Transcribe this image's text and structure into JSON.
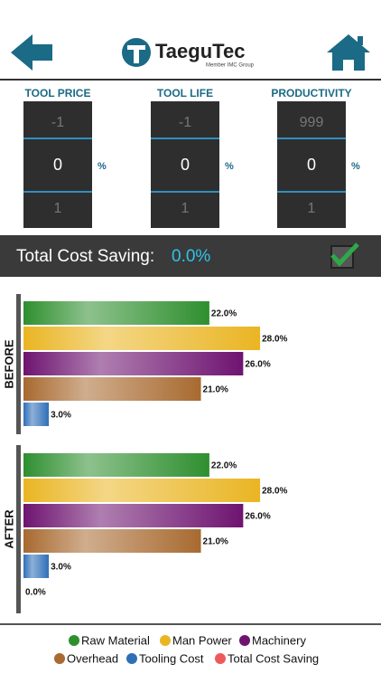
{
  "header": {
    "logo": "TaeguTec",
    "logo_sub": "Member IMC Group"
  },
  "pickers": [
    {
      "label": "TOOL PRICE",
      "above": -1,
      "value": 0,
      "below": 1,
      "unit": "%"
    },
    {
      "label": "TOOL LIFE",
      "above": -1,
      "value": 0,
      "below": 1,
      "unit": "%"
    },
    {
      "label": "PRODUCTIVITY",
      "above": 999,
      "value": 0,
      "below": 1,
      "unit": "%"
    }
  ],
  "summary": {
    "label": "Total Cost Saving:",
    "value": "0.0%"
  },
  "chart_data": {
    "type": "bar",
    "orientation": "horizontal",
    "categories": [
      "BEFORE",
      "AFTER"
    ],
    "series": [
      {
        "name": "Raw Material",
        "color": "#2f8f2f",
        "values": [
          22,
          22
        ],
        "value_labels": [
          "22.0%",
          "22.0%"
        ]
      },
      {
        "name": "Man Power",
        "color": "#eab523",
        "values": [
          28,
          28
        ],
        "value_labels": [
          "28.0%",
          "28.0%"
        ]
      },
      {
        "name": "Machinery",
        "color": "#6e1470",
        "values": [
          26,
          26
        ],
        "value_labels": [
          "26.0%",
          "26.0%"
        ]
      },
      {
        "name": "Overhead",
        "color": "#a86a30",
        "values": [
          21,
          21
        ],
        "value_labels": [
          "21.0%",
          "21.0%"
        ]
      },
      {
        "name": "Tooling Cost",
        "color": "#2f6fb8",
        "values": [
          3,
          3
        ],
        "value_labels": [
          "3.0%",
          "3.0%"
        ]
      },
      {
        "name": "Total Cost Saving",
        "color": "#ee5a5a",
        "values": [
          null,
          0
        ],
        "value_labels": [
          null,
          "0.0%"
        ]
      }
    ]
  }
}
